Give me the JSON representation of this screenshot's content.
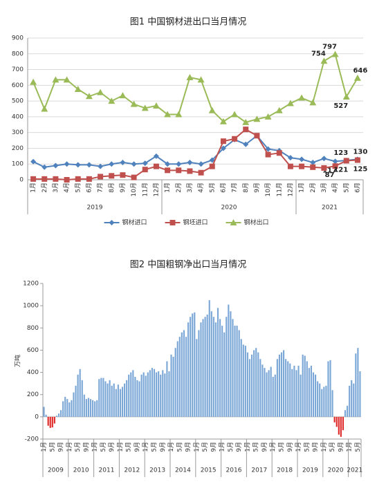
{
  "chart_data": [
    {
      "type": "line",
      "title": "图1 中国钢材进出口当月情况",
      "categories": [
        "1月",
        "2月",
        "3月",
        "4月",
        "5月",
        "6月",
        "7月",
        "8月",
        "9月",
        "10月",
        "11月",
        "12月",
        "1月",
        "2月",
        "3月",
        "4月",
        "5月",
        "6月",
        "7月",
        "8月",
        "9月",
        "10月",
        "11月",
        "12月",
        "1月",
        "2月",
        "3月",
        "4月",
        "5月",
        "6月"
      ],
      "groups": [
        "2019",
        "2020",
        "2021"
      ],
      "ylim": [
        0,
        900
      ],
      "yticks": [
        0,
        100,
        200,
        300,
        400,
        500,
        600,
        700,
        800,
        900
      ],
      "grid": true,
      "series": [
        {
          "name": "钢材进口",
          "color": "#4f81bd",
          "marker": "diamond",
          "values": [
            115,
            80,
            90,
            100,
            95,
            95,
            85,
            100,
            110,
            100,
            105,
            150,
            100,
            100,
            110,
            100,
            125,
            200,
            255,
            225,
            280,
            195,
            185,
            140,
            130,
            110,
            135,
            117,
            123,
            130
          ]
        },
        {
          "name": "钢坯进口",
          "color": "#c0504d",
          "marker": "square",
          "values": [
            5,
            5,
            5,
            0,
            5,
            5,
            20,
            25,
            30,
            15,
            65,
            85,
            60,
            60,
            55,
            45,
            85,
            245,
            260,
            320,
            280,
            160,
            170,
            85,
            85,
            80,
            75,
            87,
            121,
            125
          ]
        },
        {
          "name": "钢材出口",
          "color": "#9bbb59",
          "marker": "triangle",
          "values": [
            620,
            450,
            635,
            635,
            575,
            530,
            555,
            500,
            535,
            480,
            455,
            470,
            415,
            415,
            650,
            635,
            440,
            370,
            415,
            365,
            385,
            400,
            440,
            485,
            520,
            490,
            754,
            797,
            527,
            646
          ]
        }
      ],
      "legend": "bottom"
    },
    {
      "type": "bar",
      "title": "图2 中国粗钢净出口当月情况",
      "y_label": "万吨",
      "categories": [
        "1月",
        null,
        null,
        null,
        "5月",
        null,
        null,
        null,
        "9月",
        null,
        null,
        null,
        "1月",
        null,
        null,
        null,
        "5月",
        null,
        null,
        null,
        "9月",
        null,
        null,
        null,
        "1月",
        null,
        null,
        null,
        "5月",
        null,
        null,
        null,
        "9月",
        null,
        null,
        null,
        "1月",
        null,
        null,
        null,
        "5月",
        null,
        null,
        null,
        "9月",
        null,
        null,
        null,
        "1月",
        null,
        null,
        null,
        "5月",
        null,
        null,
        null,
        "9月",
        null,
        null,
        null,
        "1月",
        null,
        null,
        null,
        "5月",
        null,
        null,
        null,
        "9月",
        null,
        null,
        null,
        "1月",
        null,
        null,
        null,
        "5月",
        null,
        null,
        null,
        "9月",
        null,
        null,
        null,
        "1月",
        null,
        null,
        null,
        "5月",
        null,
        null,
        null,
        "9月",
        null,
        null,
        null,
        "1月",
        null,
        null,
        null,
        "5月",
        null,
        null,
        null,
        "9月",
        null,
        null,
        null,
        "1月",
        null,
        null,
        null,
        "5月",
        null,
        null,
        null,
        "9月",
        null,
        null,
        null,
        "1月",
        null,
        null,
        null,
        "5月",
        null,
        null,
        null,
        "9月",
        null,
        null,
        null,
        "1月",
        null,
        null,
        null,
        "5月",
        null,
        null,
        null,
        "9月",
        null,
        null,
        null,
        "1月",
        null,
        null,
        null,
        "5月",
        null
      ],
      "groups": [
        "2009",
        "2010",
        "2011",
        "2012",
        "2013",
        "2014",
        "2015",
        "2016",
        "2017",
        "2018",
        "2019",
        "2020",
        "2021"
      ],
      "ylim": [
        -200,
        1200
      ],
      "yticks": [
        -200,
        0,
        200,
        400,
        600,
        800,
        1000,
        1200
      ],
      "grid": false,
      "color": "#7ba7d7",
      "negative_color": "#e02b2b",
      "values": [
        90,
        20,
        -80,
        -100,
        -95,
        -60,
        10,
        30,
        60,
        140,
        180,
        160,
        130,
        150,
        220,
        280,
        380,
        430,
        330,
        200,
        160,
        170,
        160,
        150,
        140,
        150,
        340,
        350,
        350,
        320,
        300,
        330,
        280,
        300,
        250,
        290,
        250,
        270,
        300,
        330,
        380,
        400,
        420,
        360,
        330,
        320,
        380,
        400,
        370,
        400,
        420,
        440,
        430,
        400,
        410,
        380,
        420,
        390,
        500,
        410,
        560,
        540,
        620,
        680,
        720,
        760,
        780,
        720,
        850,
        900,
        930,
        940,
        700,
        780,
        850,
        880,
        900,
        920,
        1050,
        950,
        900,
        850,
        980,
        880,
        820,
        760,
        900,
        1010,
        950,
        880,
        820,
        820,
        780,
        700,
        650,
        640,
        580,
        520,
        560,
        600,
        620,
        580,
        520,
        470,
        440,
        400,
        420,
        450,
        360,
        380,
        520,
        560,
        580,
        600,
        520,
        500,
        480,
        430,
        460,
        420,
        460,
        380,
        560,
        550,
        500,
        440,
        460,
        400,
        380,
        320,
        300,
        250,
        270,
        280,
        500,
        510,
        240,
        -50,
        -90,
        -160,
        -180,
        -120,
        60,
        100,
        280,
        330,
        300,
        570,
        620,
        410
      ]
    }
  ]
}
